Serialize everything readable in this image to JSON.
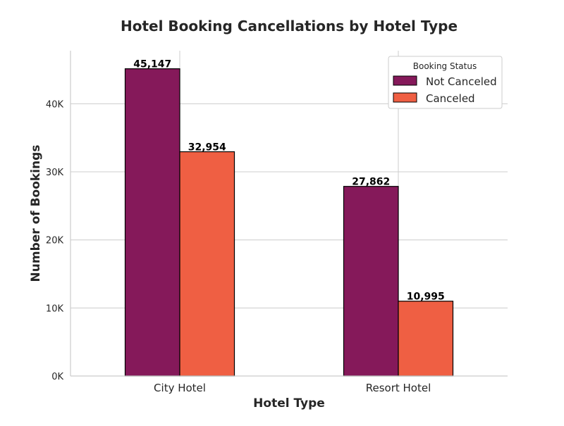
{
  "chart_data": {
    "type": "bar",
    "title": "Hotel Booking Cancellations by Hotel Type",
    "xlabel": "Hotel Type",
    "ylabel": "Number of Bookings",
    "categories": [
      "City Hotel",
      "Resort Hotel"
    ],
    "series": [
      {
        "name": "Not Canceled",
        "values": [
          45147,
          27862
        ],
        "color": "#85195a",
        "labels": [
          "45,147",
          "27,862"
        ]
      },
      {
        "name": "Canceled",
        "values": [
          32954,
          10995
        ],
        "color": "#ef5f43",
        "labels": [
          "32,954",
          "10,995"
        ]
      }
    ],
    "ylim": [
      0,
      47800
    ],
    "yticks": [
      0,
      10000,
      20000,
      30000,
      40000
    ],
    "ytick_labels": [
      "0K",
      "10K",
      "20K",
      "30K",
      "40K"
    ],
    "grid": true,
    "legend": {
      "title": "Booking Status",
      "placement": "top-right"
    }
  }
}
